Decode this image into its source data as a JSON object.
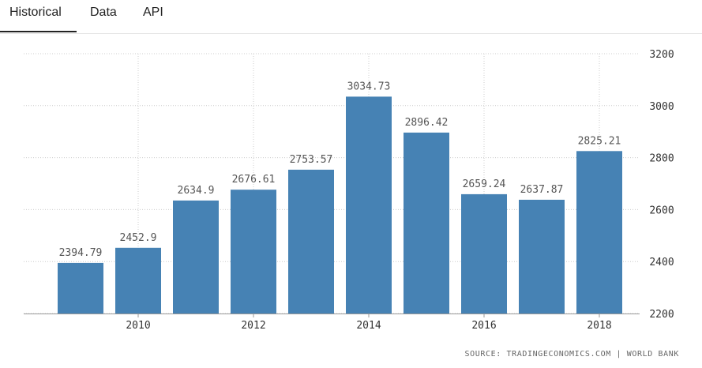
{
  "tabs": [
    {
      "label": "Historical",
      "active": true
    },
    {
      "label": "Data",
      "active": false
    },
    {
      "label": "API",
      "active": false
    }
  ],
  "source": "SOURCE: TRADINGECONOMICS.COM | WORLD BANK",
  "colors": {
    "bar": "#4682b4",
    "grid": "#cccccc",
    "text": "#333333",
    "data_label": "#555555"
  },
  "chart_data": {
    "type": "bar",
    "categories": [
      "2009",
      "2010",
      "2011",
      "2012",
      "2013",
      "2014",
      "2015",
      "2016",
      "2017",
      "2018"
    ],
    "values": [
      2394.79,
      2452.9,
      2634.9,
      2676.61,
      2753.57,
      3034.73,
      2896.42,
      2659.24,
      2637.87,
      2825.21
    ],
    "data_labels": [
      "2394.79",
      "2452.9",
      "2634.9",
      "2676.61",
      "2753.57",
      "3034.73",
      "2896.42",
      "2659.24",
      "2637.87",
      "2825.21"
    ],
    "x_tick_labels": [
      "2010",
      "2012",
      "2014",
      "2016",
      "2018"
    ],
    "y_tick_labels": [
      "2200",
      "2400",
      "2600",
      "2800",
      "3000",
      "3200"
    ],
    "ylim": [
      2200,
      3200
    ],
    "y_axis_side": "right",
    "grid": true,
    "title": "",
    "xlabel": "",
    "ylabel": ""
  }
}
